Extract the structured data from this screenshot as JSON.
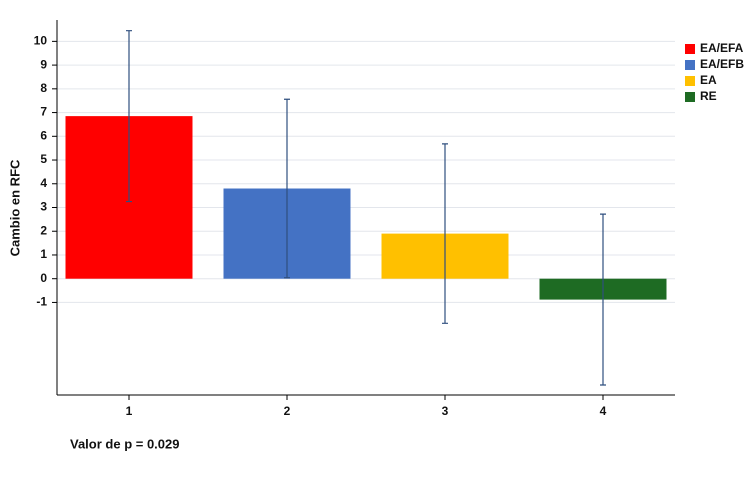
{
  "chart_data": {
    "type": "bar",
    "y_label": "Cambio en RFC",
    "annotation": "Valor de p = 0.029",
    "categories": [
      "1",
      "2",
      "3",
      "4"
    ],
    "series": [
      {
        "name": "EA/EFA",
        "color": "#ff0000",
        "values": [
          6.85,
          null,
          null,
          null
        ],
        "errors": [
          3.6,
          null,
          null,
          null
        ]
      },
      {
        "name": "EA/EFB",
        "color": "#4472c4",
        "values": [
          null,
          3.8,
          null,
          null
        ],
        "errors": [
          null,
          3.76,
          null,
          null
        ]
      },
      {
        "name": "EA",
        "color": "#ffc000",
        "values": [
          null,
          null,
          1.9,
          null
        ],
        "errors": [
          null,
          null,
          3.78,
          null
        ]
      },
      {
        "name": "RE",
        "color": "#1e6b23",
        "values": [
          null,
          null,
          null,
          -0.88
        ],
        "errors": [
          null,
          null,
          null,
          3.6
        ]
      }
    ],
    "error_color": "#2f4f7f",
    "ylim": [
      -4.9,
      10.9
    ],
    "yticks": [
      -1,
      0,
      1,
      2,
      3,
      4,
      5,
      6,
      7,
      8,
      9,
      10
    ],
    "grid": true
  }
}
